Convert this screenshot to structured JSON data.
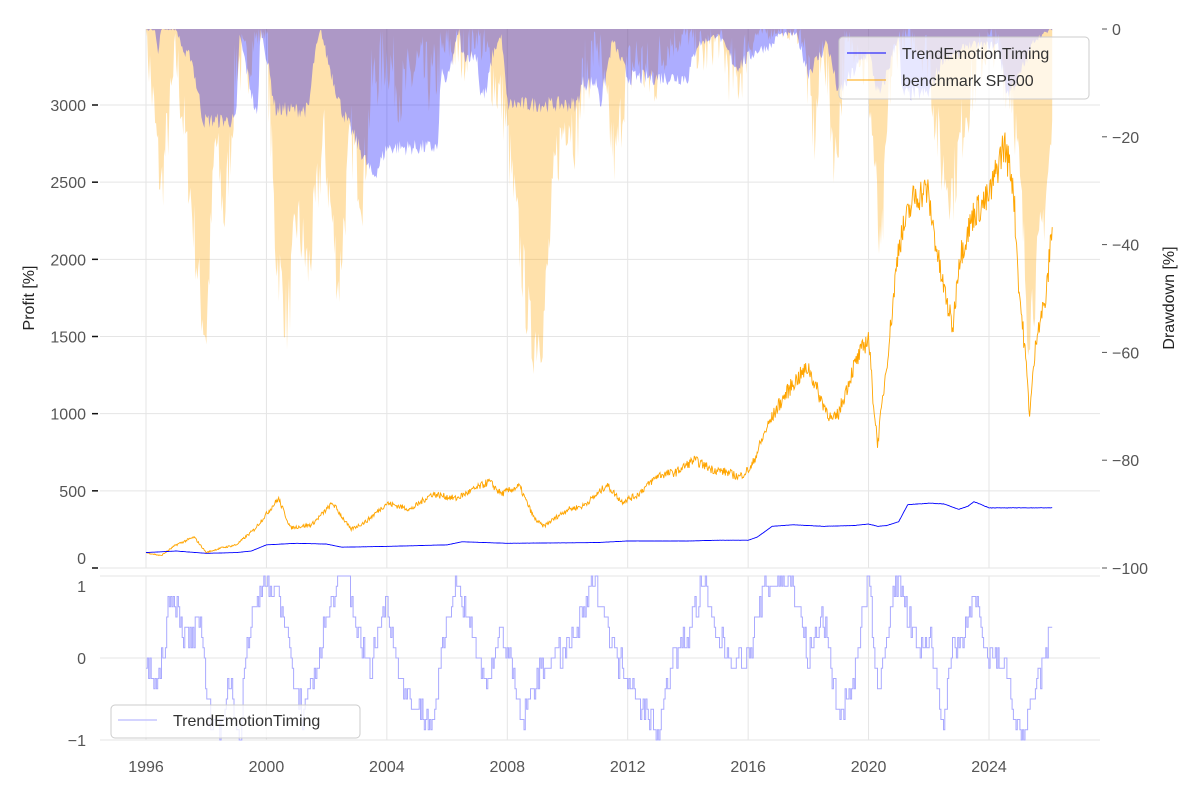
{
  "chart_data": [
    {
      "panel": "main",
      "type": "line",
      "title": "",
      "xlabel": "",
      "ylabel": "Profit [%]",
      "ylabel_right": "Drawdown [%]",
      "xlim": [
        1995.5,
        2027.0
      ],
      "ylim": [
        0,
        3490
      ],
      "ylim_right": [
        -100,
        0
      ],
      "grid": true,
      "legend_position": "top-right",
      "x_ticks": [
        "1996",
        "2000",
        "2004",
        "2008",
        "2012",
        "2016",
        "2020",
        "2024"
      ],
      "y_ticks": [
        "0",
        "500",
        "1000",
        "1500",
        "2000",
        "2500",
        "3000"
      ],
      "y_ticks_right": [
        "0",
        "−20",
        "−40",
        "−60",
        "−80",
        "−100"
      ],
      "series": [
        {
          "name": "TrendEmotionTiming",
          "axis": "left",
          "color": "#0000ff",
          "x": [
            1996.0,
            1997.0,
            1998.0,
            1999.0,
            1999.5,
            2000.0,
            2000.5,
            2001.0,
            2002.0,
            2002.5,
            2004.0,
            2006.0,
            2006.5,
            2008.0,
            2011.0,
            2012.0,
            2014.0,
            2015.0,
            2016.0,
            2016.3,
            2016.8,
            2017.5,
            2018.5,
            2019.5,
            2020.0,
            2020.3,
            2020.6,
            2021.0,
            2021.3,
            2022.0,
            2022.5,
            2023.0,
            2023.3,
            2023.5,
            2024.0,
            2025.0,
            2026.1
          ],
          "values": [
            100,
            110,
            95,
            100,
            110,
            150,
            155,
            160,
            155,
            135,
            140,
            150,
            170,
            160,
            165,
            175,
            175,
            180,
            180,
            200,
            270,
            280,
            270,
            275,
            285,
            270,
            275,
            300,
            410,
            420,
            415,
            380,
            400,
            430,
            390,
            390,
            390
          ]
        },
        {
          "name": "benchmark SP500",
          "axis": "left",
          "color": "#ffa500",
          "x": [
            1996.0,
            1996.5,
            1997.0,
            1997.6,
            1998.0,
            1998.5,
            1999.0,
            1999.6,
            2000.0,
            2000.4,
            2000.8,
            2001.5,
            2002.2,
            2002.8,
            2003.3,
            2004.0,
            2004.8,
            2005.5,
            2006.3,
            2007.0,
            2007.4,
            2007.8,
            2008.4,
            2008.9,
            2009.2,
            2010.0,
            2010.5,
            2011.0,
            2011.3,
            2011.8,
            2012.3,
            2013.0,
            2013.6,
            2014.2,
            2014.8,
            2015.3,
            2015.7,
            2016.1,
            2016.6,
            2017.0,
            2017.5,
            2018.0,
            2018.4,
            2018.8,
            2019.0,
            2019.5,
            2020.0,
            2020.15,
            2020.3,
            2020.7,
            2021.0,
            2021.5,
            2021.95,
            2022.4,
            2022.8,
            2023.0,
            2023.5,
            2024.0,
            2024.5,
            2024.8,
            2025.0,
            2025.2,
            2025.35,
            2025.6,
            2025.9,
            2026.1
          ],
          "values": [
            100,
            80,
            150,
            200,
            100,
            130,
            150,
            250,
            350,
            450,
            260,
            280,
            420,
            250,
            300,
            420,
            380,
            480,
            450,
            520,
            560,
            480,
            530,
            320,
            270,
            380,
            400,
            480,
            540,
            430,
            470,
            600,
            620,
            700,
            640,
            620,
            590,
            650,
            900,
            1050,
            1200,
            1300,
            1100,
            950,
            1000,
            1300,
            1500,
            1100,
            800,
            1500,
            2100,
            2400,
            2450,
            1900,
            1550,
            2000,
            2300,
            2400,
            2750,
            2500,
            1800,
            1400,
            1000,
            1550,
            1750,
            2250
          ]
        },
        {
          "name": "drawdown TrendEmotionTiming",
          "axis": "right",
          "color": "#aaaaff",
          "x": [
            1996.0,
            1996.3,
            1996.4,
            1996.5,
            1997.0,
            1997.3,
            1997.5,
            1997.9,
            1998.0,
            1999.0,
            1999.1,
            1999.7,
            1999.8,
            2000.0,
            2000.3,
            2000.5,
            2001.4,
            2001.6,
            2001.8,
            2002.0,
            2002.5,
            2003.5,
            2003.6,
            2004.0,
            2004.2,
            2005.7,
            2005.8,
            2006.0,
            2006.2,
            2006.4,
            2006.5,
            2007.0,
            2007.1,
            2007.3,
            2007.5,
            2007.8,
            2008.0,
            2010.3,
            2010.5,
            2011.0,
            2011.1,
            2011.5,
            2012.0,
            2012.5,
            2013.0,
            2014.0,
            2014.3,
            2015.0,
            2015.6,
            2016.3,
            2016.8,
            2017.0,
            2017.6,
            2018.0,
            2018.5,
            2018.6,
            2019.0,
            2019.5,
            2020.0,
            2020.3,
            2020.4,
            2021.0,
            2021.1,
            2021.7,
            2022.0,
            2022.5,
            2023.0,
            2023.2,
            2023.8,
            2024.3,
            2024.6,
            2025.0,
            2025.5,
            2026.1
          ],
          "values": [
            0,
            0,
            -5,
            0,
            0,
            -5,
            -5,
            -17,
            -17,
            -17,
            -1,
            -17,
            0,
            -5,
            -15,
            -15,
            -15,
            -5,
            0,
            -5,
            -15,
            -27,
            -27,
            -22,
            -22,
            -22,
            -8,
            -10,
            -5,
            0,
            -5,
            -5,
            -12,
            -12,
            -5,
            -1,
            -14,
            -14,
            -10,
            -10,
            -14,
            -2,
            -9,
            -9,
            -9,
            -9,
            -3,
            -1,
            -7,
            -4,
            -3,
            -1,
            -1,
            -8,
            -4,
            -2,
            -12,
            -8,
            -4,
            -12,
            -12,
            -1,
            -12,
            -12,
            -12,
            -5,
            -5,
            -3,
            -3,
            -3,
            -12,
            -9,
            -2,
            0
          ]
        },
        {
          "name": "drawdown benchmark SP500",
          "axis": "right",
          "color": "#ffdca0",
          "x": [
            1996.0,
            1996.5,
            1997.0,
            1997.3,
            1997.8,
            1998.0,
            1998.3,
            1998.6,
            1998.8,
            1999.0,
            1999.3,
            1999.6,
            2000.0,
            2000.3,
            2000.7,
            2001.0,
            2001.4,
            2001.9,
            2002.4,
            2002.8,
            2003.2,
            2003.5,
            2004.0,
            2004.5,
            2005.0,
            2005.5,
            2006.0,
            2006.5,
            2007.0,
            2007.5,
            2007.9,
            2008.3,
            2008.8,
            2009.2,
            2009.6,
            2010.0,
            2010.3,
            2010.5,
            2011.0,
            2011.2,
            2011.6,
            2011.9,
            2012.3,
            2012.8,
            2013.3,
            2014.0,
            2014.5,
            2015.0,
            2015.6,
            2016.0,
            2016.3,
            2017.0,
            2017.8,
            2018.2,
            2018.5,
            2018.9,
            2019.2,
            2019.6,
            2020.0,
            2020.2,
            2020.4,
            2020.7,
            2021.0,
            2021.5,
            2022.0,
            2022.4,
            2022.8,
            2023.2,
            2023.6,
            2024.0,
            2024.4,
            2024.8,
            2025.1,
            2025.3,
            2025.6,
            2025.9,
            2026.1
          ],
          "values": [
            0,
            -30,
            -5,
            -20,
            -50,
            -57,
            -20,
            -35,
            -22,
            -5,
            -8,
            -2,
            0,
            -40,
            -55,
            -35,
            -45,
            -20,
            -48,
            -20,
            -30,
            -10,
            -5,
            -12,
            -7,
            -10,
            -3,
            -5,
            -1,
            -8,
            -15,
            -35,
            -58,
            -55,
            -25,
            -15,
            -20,
            -10,
            -2,
            -12,
            -25,
            -10,
            -5,
            -10,
            -3,
            -1,
            -5,
            -2,
            -10,
            -3,
            -1,
            0,
            -1,
            -20,
            -2,
            -25,
            -5,
            -2,
            -10,
            -25,
            -45,
            -10,
            -2,
            -2,
            -5,
            -25,
            -30,
            -15,
            -8,
            -2,
            -5,
            -12,
            -35,
            -55,
            -45,
            -30,
            -20
          ]
        }
      ]
    },
    {
      "panel": "signal",
      "type": "line",
      "title": "",
      "xlabel": "",
      "ylabel": "",
      "xlim": [
        1995.5,
        2027.0
      ],
      "ylim": [
        -1,
        1
      ],
      "grid": true,
      "legend_position": "bottom-left",
      "x_ticks": [
        "1996",
        "2000",
        "2004",
        "2008",
        "2012",
        "2016",
        "2020",
        "2024"
      ],
      "y_ticks": [
        "−1",
        "0",
        "1"
      ],
      "series": [
        {
          "name": "TrendEmotionTiming",
          "color": "#aaaaff",
          "x": [
            1996.0,
            1996.2,
            1996.4,
            1996.7,
            1997.0,
            1997.3,
            1997.6,
            1997.8,
            1998.0,
            1998.4,
            1998.8,
            1999.1,
            1999.3,
            1999.6,
            2000.0,
            2000.3,
            2000.6,
            2000.9,
            2001.2,
            2001.6,
            2002.0,
            2002.4,
            2002.7,
            2003.0,
            2003.4,
            2003.8,
            2004.0,
            2004.3,
            2004.6,
            2005.0,
            2005.5,
            2006.0,
            2006.3,
            2006.7,
            2007.0,
            2007.4,
            2007.8,
            2008.0,
            2008.5,
            2009.0,
            2009.5,
            2010.0,
            2010.5,
            2010.9,
            2011.2,
            2011.6,
            2012.0,
            2012.5,
            2013.0,
            2013.5,
            2014.0,
            2014.5,
            2015.0,
            2015.5,
            2016.0,
            2016.5,
            2017.0,
            2017.5,
            2018.0,
            2018.5,
            2019.0,
            2019.5,
            2020.0,
            2020.3,
            2020.7,
            2021.0,
            2021.3,
            2021.7,
            2022.0,
            2022.5,
            2022.8,
            2023.0,
            2023.5,
            2023.8,
            2024.0,
            2024.5,
            2024.9,
            2025.2,
            2025.5,
            2025.8,
            2026.1
          ],
          "values": [
            0,
            -0.2,
            -0.4,
            0.5,
            0.7,
            0.2,
            0.3,
            0.6,
            -0.5,
            -0.9,
            -0.3,
            -1.0,
            0.0,
            0.6,
            1.0,
            0.8,
            0.5,
            -0.3,
            -0.7,
            -0.2,
            0.5,
            0.9,
            1.0,
            0.4,
            -0.2,
            0.5,
            0.7,
            0.0,
            -0.4,
            -0.6,
            -0.8,
            0.4,
            1.0,
            0.5,
            0.0,
            -0.3,
            0.4,
            0.1,
            -0.8,
            -0.2,
            0.0,
            0.1,
            0.5,
            1.0,
            0.6,
            0.0,
            -0.2,
            -0.6,
            -0.9,
            0.0,
            0.3,
            0.9,
            0.2,
            0.0,
            0.0,
            0.8,
            1.0,
            0.9,
            0.0,
            0.5,
            -0.7,
            -0.3,
            1.0,
            -0.5,
            0.6,
            1.0,
            0.5,
            0.0,
            0.3,
            -0.8,
            0.2,
            0.0,
            0.8,
            0.1,
            0.0,
            0.0,
            -0.8,
            -1.0,
            -0.4,
            -0.1,
            0.45
          ]
        }
      ]
    }
  ],
  "legend_main": {
    "items": [
      "TrendEmotionTiming",
      "benchmark SP500"
    ]
  },
  "legend_signal": {
    "items": [
      "TrendEmotionTiming"
    ]
  },
  "axis_labels": {
    "left": "Profit [%]",
    "right": "Drawdown [%]"
  }
}
